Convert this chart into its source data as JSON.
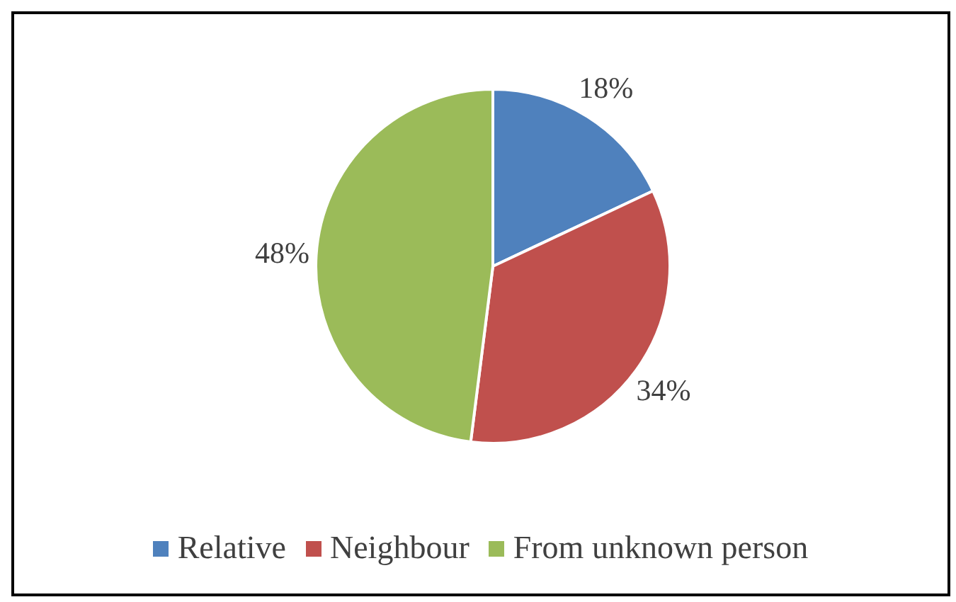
{
  "chart_data": {
    "type": "pie",
    "categories": [
      "Relative",
      "Neighbour",
      "From unknown person"
    ],
    "values": [
      18,
      34,
      48
    ],
    "value_labels": [
      "18%",
      "34%",
      "48%"
    ],
    "colors": [
      "#4f81bd",
      "#c0504d",
      "#9bbb59"
    ],
    "legend": "bottom"
  }
}
